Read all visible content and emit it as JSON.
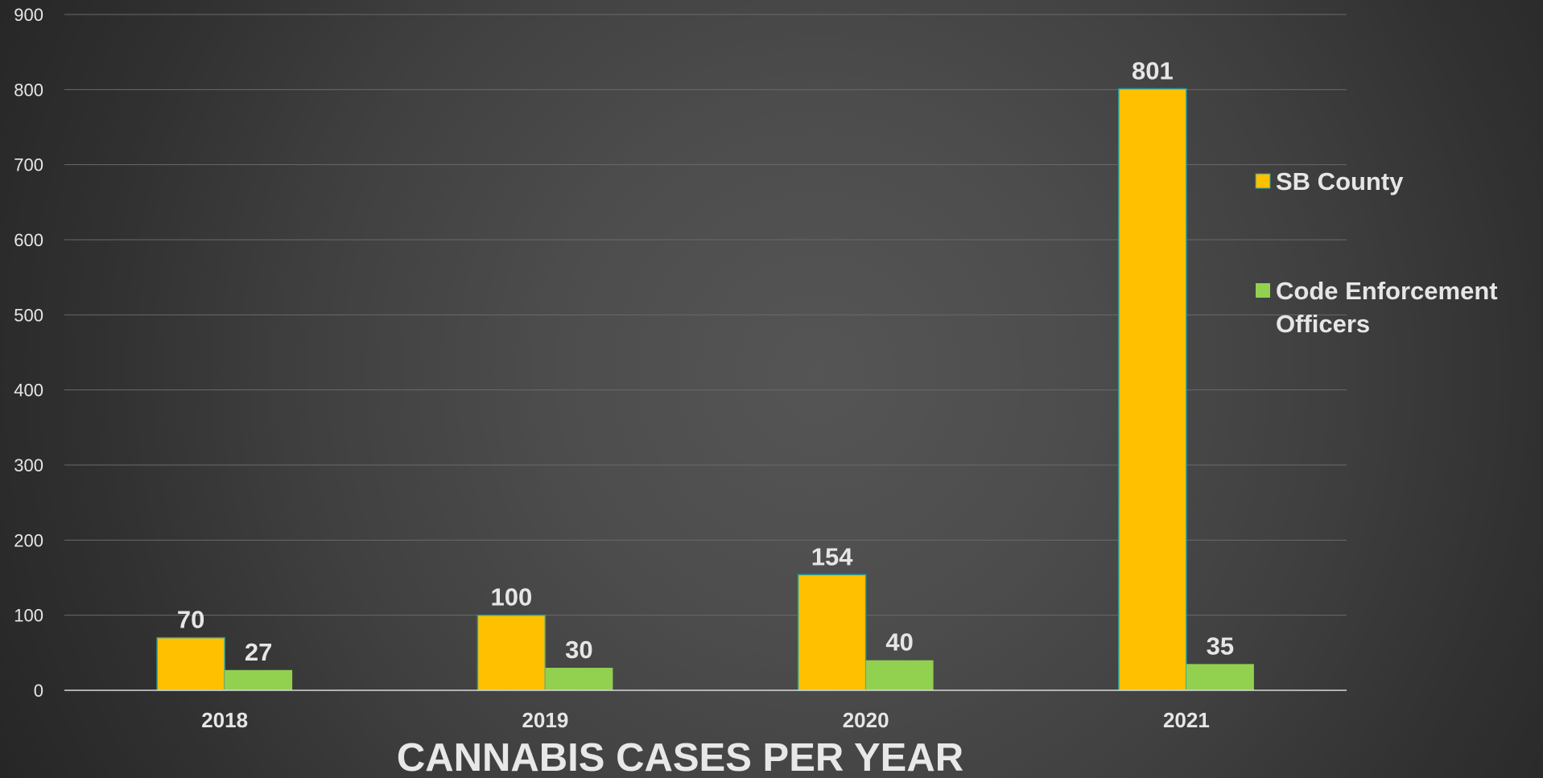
{
  "chart_data": {
    "type": "bar",
    "title": "CANNABIS CASES PER YEAR",
    "categories": [
      "2018",
      "2019",
      "2020",
      "2021"
    ],
    "series": [
      {
        "name": "SB County",
        "values": [
          70,
          100,
          154,
          801
        ],
        "color": "#FFC000"
      },
      {
        "name": "Code Enforcement Officers",
        "values": [
          27,
          30,
          40,
          35
        ],
        "color": "#92D050"
      }
    ],
    "ylim": [
      0,
      900
    ],
    "yticks": [
      "0",
      "100",
      "200",
      "300",
      "400",
      "500",
      "600",
      "700",
      "800",
      "900"
    ],
    "grid": true,
    "legend_position": "right",
    "colors": {
      "background": "#484848",
      "grid": "#6a6a6a",
      "axis": "#d9d9d9",
      "text": "#e6e6e6",
      "bar_outline": "#2a9d9d"
    }
  }
}
